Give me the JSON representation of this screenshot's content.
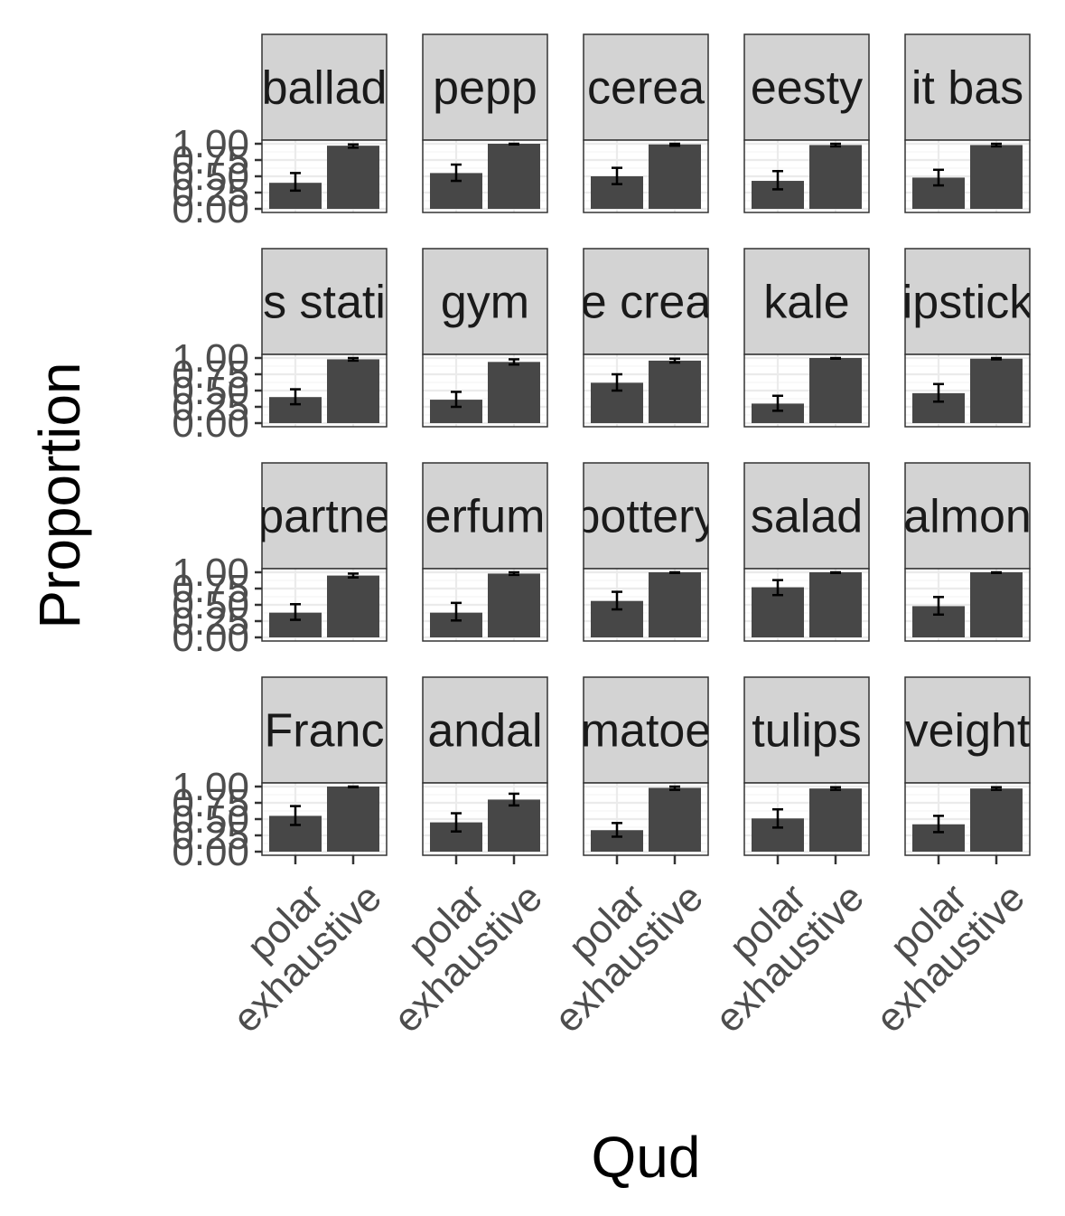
{
  "chart_data": {
    "type": "bar",
    "faceted": true,
    "layout": {
      "rows": 4,
      "cols": 5
    },
    "xlabel": "Qud",
    "ylabel": "Proportion",
    "categories": [
      "polar",
      "exhaustive"
    ],
    "ylim": [
      0,
      1
    ],
    "yticks": [
      0,
      0.25,
      0.5,
      0.75,
      1.0
    ],
    "ytick_labels": [
      "0.00",
      "0.25",
      "0.50",
      "0.75",
      "1.00"
    ],
    "grid": true,
    "colors": {
      "bar": "#474747",
      "strip": "#d3d3d3",
      "error_bar": "#000000"
    },
    "panels": [
      {
        "strip": "ballad",
        "values": [
          0.4,
          0.97
        ],
        "errors": [
          [
            0.28,
            0.55
          ],
          [
            0.94,
            0.99
          ]
        ]
      },
      {
        "strip": "pepp",
        "values": [
          0.55,
          1.0
        ],
        "errors": [
          [
            0.43,
            0.68
          ],
          [
            0.99,
            1.0
          ]
        ]
      },
      {
        "strip": "cerea",
        "values": [
          0.5,
          0.99
        ],
        "errors": [
          [
            0.38,
            0.63
          ],
          [
            0.97,
            1.0
          ]
        ]
      },
      {
        "strip": "eesty",
        "values": [
          0.43,
          0.98
        ],
        "errors": [
          [
            0.3,
            0.58
          ],
          [
            0.96,
            1.0
          ]
        ]
      },
      {
        "strip": "it bas",
        "values": [
          0.48,
          0.98
        ],
        "errors": [
          [
            0.36,
            0.6
          ],
          [
            0.96,
            1.0
          ]
        ]
      },
      {
        "strip": "s stati",
        "values": [
          0.4,
          0.98
        ],
        "errors": [
          [
            0.29,
            0.52
          ],
          [
            0.96,
            1.0
          ]
        ]
      },
      {
        "strip": "gym",
        "values": [
          0.36,
          0.94
        ],
        "errors": [
          [
            0.25,
            0.48
          ],
          [
            0.9,
            0.98
          ]
        ]
      },
      {
        "strip": "e crea",
        "values": [
          0.62,
          0.96
        ],
        "errors": [
          [
            0.5,
            0.75
          ],
          [
            0.93,
            0.99
          ]
        ]
      },
      {
        "strip": "kale",
        "values": [
          0.3,
          1.0
        ],
        "errors": [
          [
            0.19,
            0.42
          ],
          [
            0.99,
            1.0
          ]
        ]
      },
      {
        "strip": "ipstick",
        "values": [
          0.46,
          0.99
        ],
        "errors": [
          [
            0.33,
            0.6
          ],
          [
            0.98,
            1.0
          ]
        ]
      },
      {
        "strip": "partne",
        "values": [
          0.38,
          0.95
        ],
        "errors": [
          [
            0.27,
            0.51
          ],
          [
            0.92,
            0.98
          ]
        ]
      },
      {
        "strip": "erfum",
        "values": [
          0.38,
          0.98
        ],
        "errors": [
          [
            0.26,
            0.53
          ],
          [
            0.96,
            1.0
          ]
        ]
      },
      {
        "strip": "pottery",
        "values": [
          0.56,
          1.0
        ],
        "errors": [
          [
            0.43,
            0.7
          ],
          [
            0.99,
            1.0
          ]
        ]
      },
      {
        "strip": "salad",
        "values": [
          0.77,
          1.0
        ],
        "errors": [
          [
            0.65,
            0.88
          ],
          [
            0.99,
            1.0
          ]
        ]
      },
      {
        "strip": "almon",
        "values": [
          0.48,
          1.0
        ],
        "errors": [
          [
            0.35,
            0.62
          ],
          [
            0.99,
            1.0
          ]
        ]
      },
      {
        "strip": "Franc",
        "values": [
          0.55,
          1.0
        ],
        "errors": [
          [
            0.41,
            0.7
          ],
          [
            0.99,
            1.0
          ]
        ]
      },
      {
        "strip": "andal",
        "values": [
          0.45,
          0.8
        ],
        "errors": [
          [
            0.31,
            0.59
          ],
          [
            0.71,
            0.89
          ]
        ]
      },
      {
        "strip": "matoe",
        "values": [
          0.33,
          0.98
        ],
        "errors": [
          [
            0.23,
            0.44
          ],
          [
            0.95,
            1.0
          ]
        ]
      },
      {
        "strip": "tulips",
        "values": [
          0.51,
          0.97
        ],
        "errors": [
          [
            0.37,
            0.65
          ],
          [
            0.95,
            0.99
          ]
        ]
      },
      {
        "strip": "veight",
        "values": [
          0.42,
          0.97
        ],
        "errors": [
          [
            0.3,
            0.55
          ],
          [
            0.95,
            0.99
          ]
        ]
      }
    ]
  }
}
